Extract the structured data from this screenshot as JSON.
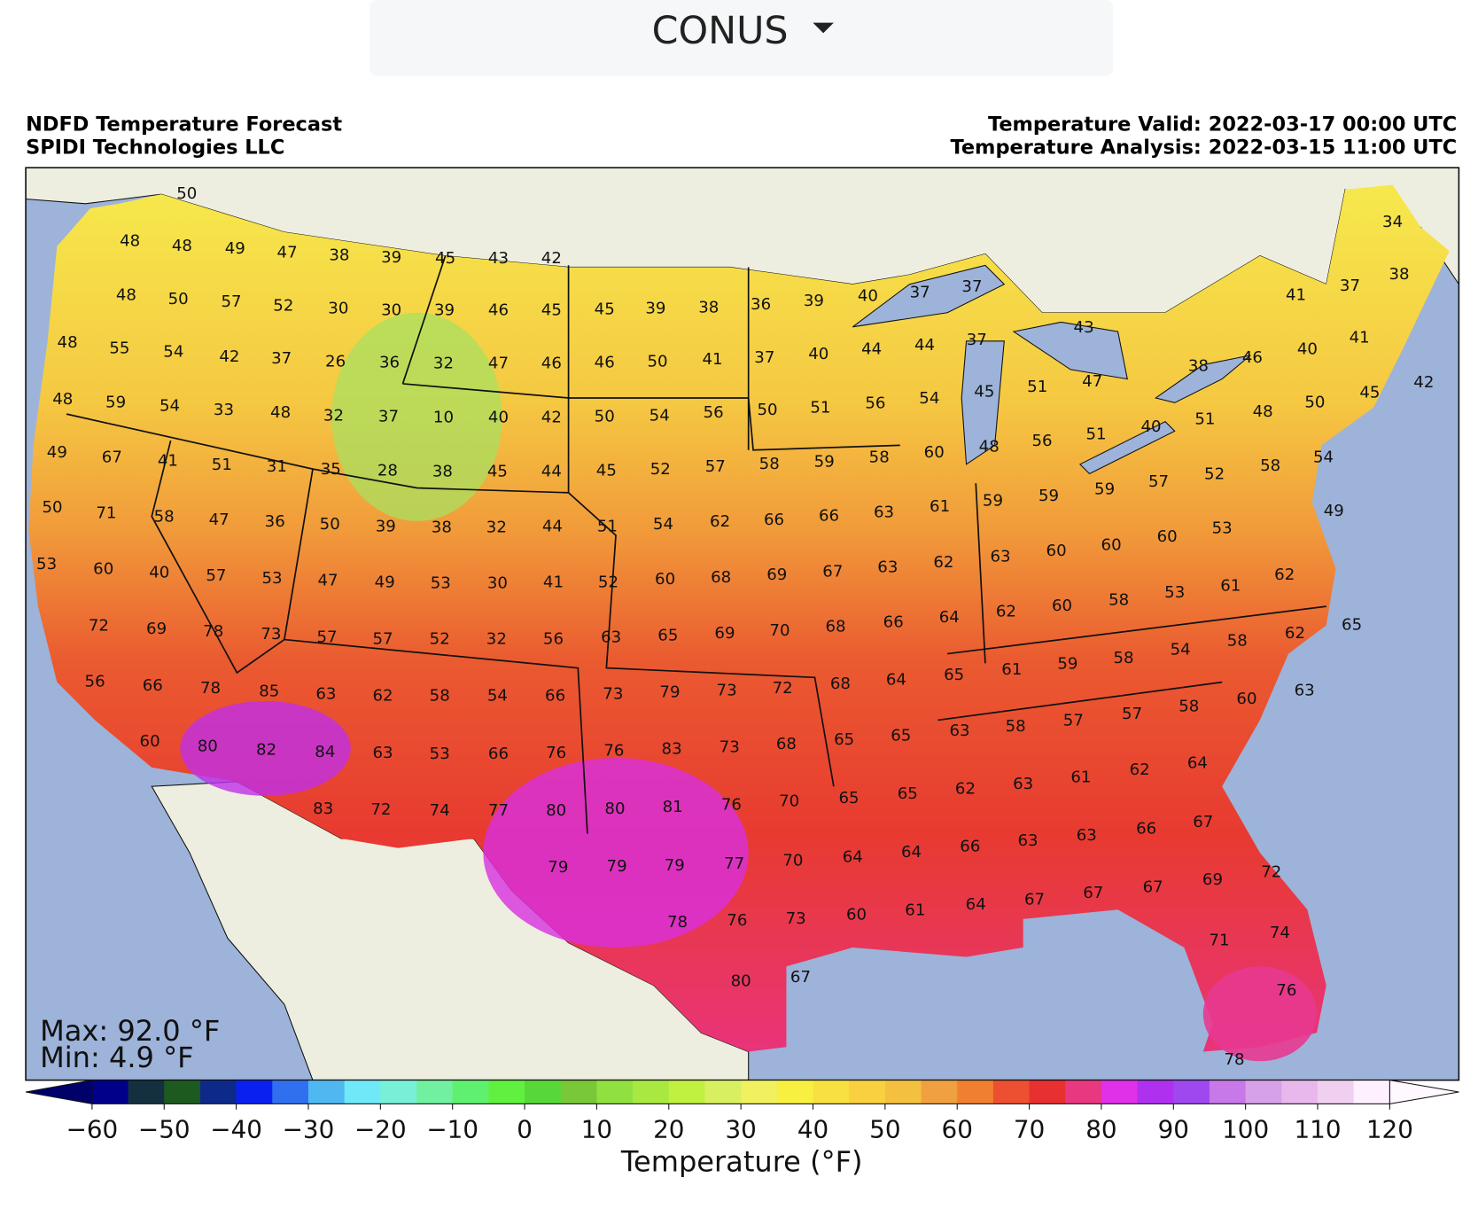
{
  "header": {
    "region": "CONUS"
  },
  "map": {
    "title_left": [
      "NDFD Temperature Forecast",
      "SPIDI Technologies LLC"
    ],
    "title_right": [
      "Temperature Valid: 2022-03-17 00:00 UTC",
      "Temperature Analysis: 2022-03-15 11:00 UTC"
    ],
    "max_label": "Max: 92.0 °F",
    "min_label": "Min: 4.9 °F",
    "labels": [
      50,
      48,
      48,
      49,
      47,
      38,
      39,
      45,
      43,
      42,
      48,
      50,
      57,
      52,
      30,
      30,
      39,
      46,
      45,
      45,
      39,
      38,
      36,
      39,
      40,
      37,
      37,
      48,
      55,
      54,
      42,
      37,
      26,
      36,
      32,
      47,
      46,
      46,
      50,
      41,
      37,
      40,
      44,
      44,
      37,
      43,
      48,
      59,
      54,
      33,
      48,
      32,
      37,
      10,
      40,
      42,
      50,
      54,
      56,
      50,
      51,
      56,
      54,
      45,
      51,
      47,
      34,
      37,
      38,
      41,
      46,
      40,
      41,
      38,
      50,
      45,
      42,
      49,
      67,
      41,
      51,
      31,
      35,
      28,
      38,
      45,
      44,
      45,
      52,
      57,
      58,
      59,
      58,
      60,
      48,
      56,
      51,
      40,
      51,
      48,
      50,
      71,
      58,
      47,
      36,
      50,
      39,
      38,
      32,
      44,
      51,
      54,
      62,
      66,
      66,
      63,
      61,
      59,
      59,
      59,
      57,
      52,
      58,
      54,
      49,
      53,
      60,
      40,
      57,
      53,
      47,
      49,
      53,
      30,
      41,
      52,
      60,
      68,
      69,
      67,
      63,
      62,
      63,
      60,
      60,
      60,
      53,
      62,
      61,
      53,
      72,
      69,
      78,
      73,
      57,
      57,
      52,
      32,
      56,
      63,
      65,
      69,
      70,
      68,
      66,
      64,
      62,
      60,
      58,
      65,
      62,
      58,
      54,
      56,
      66,
      78,
      85,
      63,
      62,
      58,
      54,
      66,
      73,
      79,
      73,
      72,
      68,
      64,
      65,
      61,
      59,
      58,
      63,
      60,
      58,
      57,
      60,
      80,
      82,
      84,
      63,
      53,
      66,
      76,
      76,
      83,
      73,
      68,
      65,
      65,
      63,
      58,
      57,
      64,
      62,
      61,
      63,
      62,
      83,
      72,
      74,
      77,
      80,
      80,
      81,
      76,
      70,
      65,
      65,
      67,
      66,
      63,
      63,
      66,
      79,
      79,
      79,
      77,
      70,
      64,
      64,
      72,
      69,
      67,
      67,
      67,
      64,
      61,
      60,
      78,
      76,
      73,
      74,
      71,
      80,
      67,
      76,
      78
    ]
  },
  "colorbar": {
    "label": "Temperature (°F)",
    "ticks": [
      {
        "value": -60,
        "label": "−60"
      },
      {
        "value": -50,
        "label": "−50"
      },
      {
        "value": -40,
        "label": "−40"
      },
      {
        "value": -30,
        "label": "−30"
      },
      {
        "value": -20,
        "label": "−20"
      },
      {
        "value": -10,
        "label": "−10"
      },
      0,
      10,
      20,
      30,
      40,
      50,
      60,
      70,
      80,
      90,
      100,
      110,
      120
    ],
    "under_color": "#00006a",
    "over_color": "#fff8ff",
    "colors": [
      "#00008a",
      "#143040",
      "#1d5a20",
      "#0d2a8a",
      "#0a20f0",
      "#3070f0",
      "#50b8f0",
      "#70e8f8",
      "#78f0d8",
      "#70f0a0",
      "#60f070",
      "#60f040",
      "#58d838",
      "#78c838",
      "#90e040",
      "#a8e840",
      "#c0f040",
      "#d8f060",
      "#f0f060",
      "#f8f040",
      "#f8e040",
      "#f8d040",
      "#f4c040",
      "#f0a040",
      "#f08030",
      "#ec5030",
      "#e83030",
      "#e83880",
      "#e030e8",
      "#b030f0",
      "#a048f0",
      "#c878e8",
      "#d8a0e8",
      "#e8b8ec",
      "#f0d0f0",
      "#fff0ff"
    ]
  }
}
